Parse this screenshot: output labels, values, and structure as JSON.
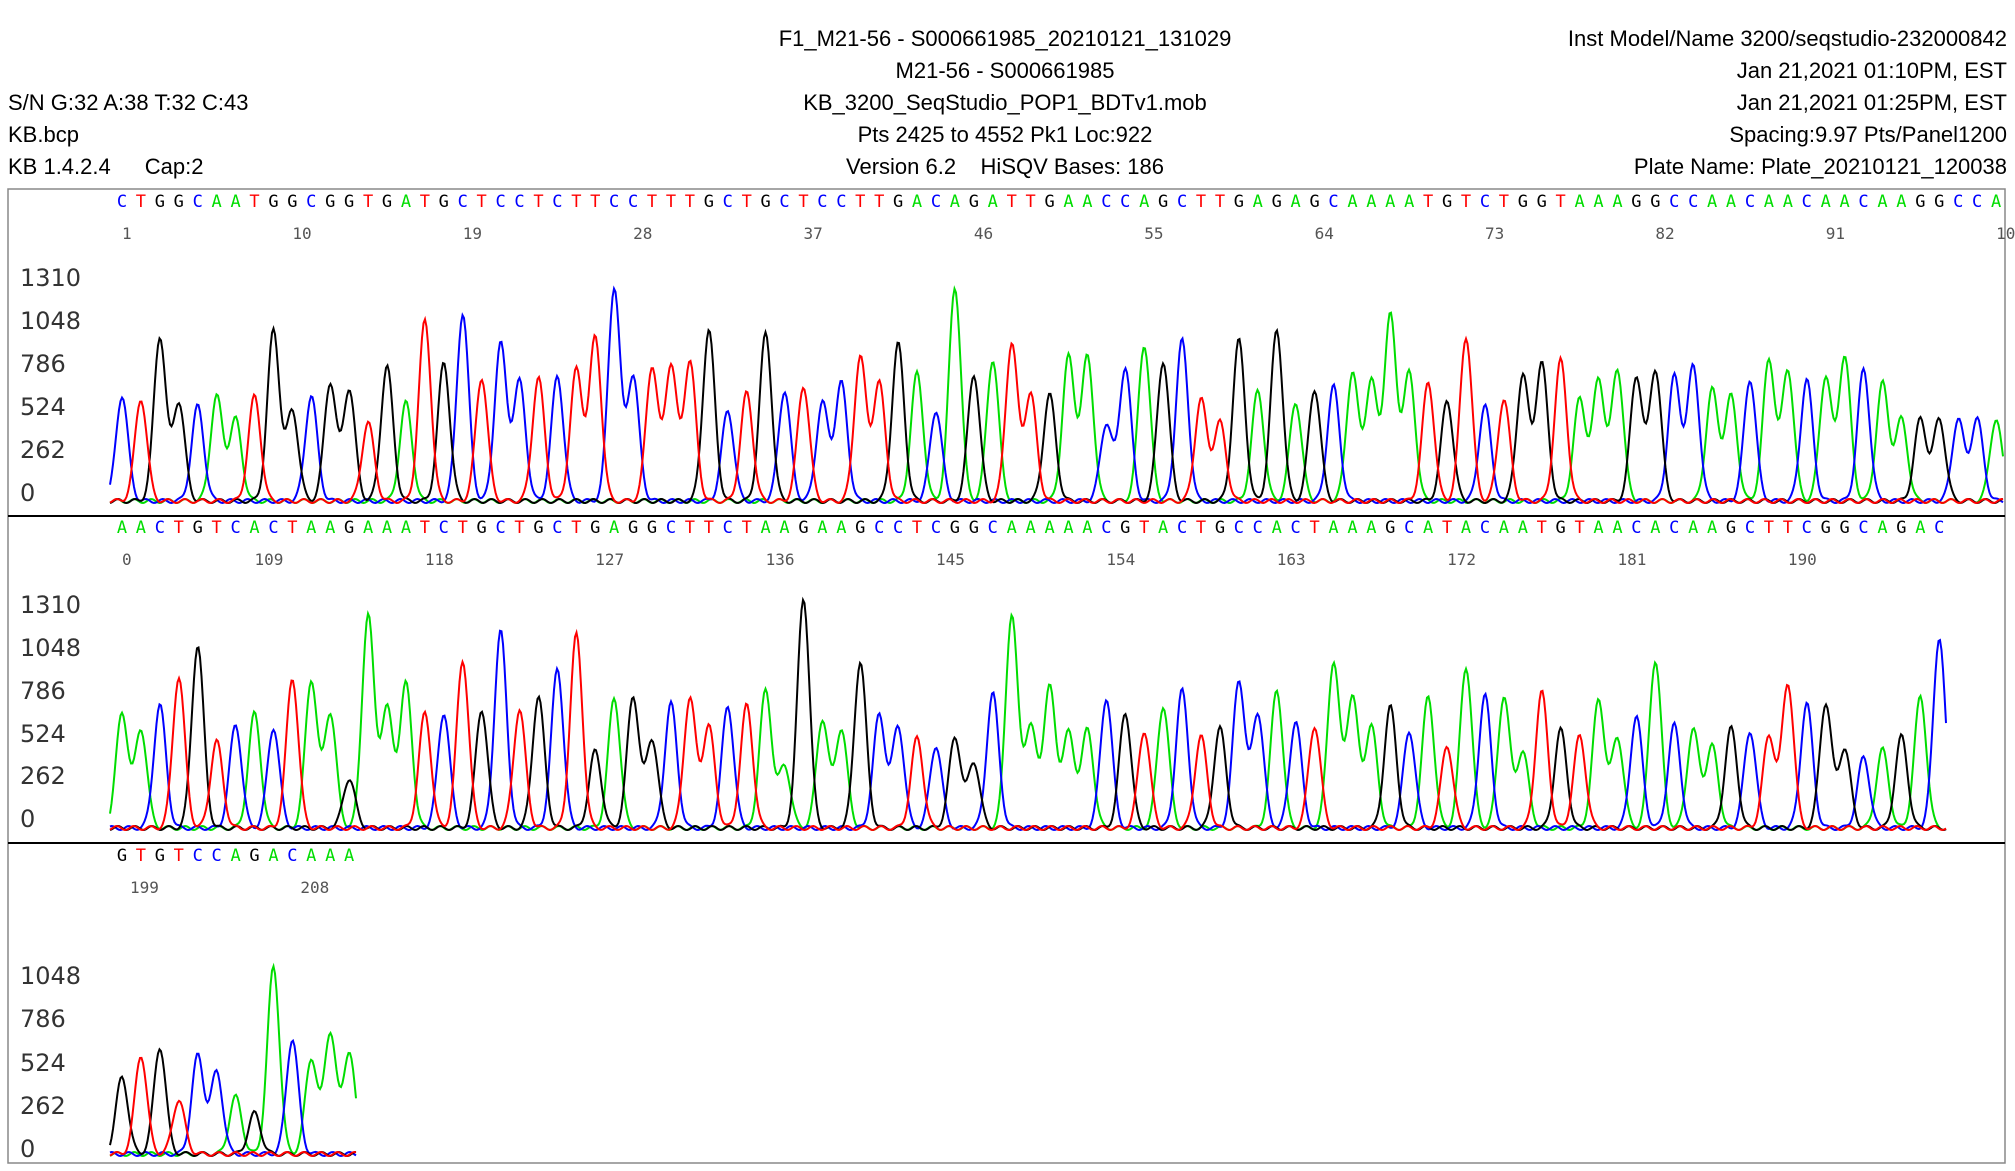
{
  "header": {
    "left": {
      "sn": "S/N G:32 A:38 T:32 C:43",
      "bcp": "KB.bcp",
      "kb_version": "KB 1.4.2.4",
      "cap": "Cap:2"
    },
    "center": {
      "sample_file": "F1_M21-56 - S000661985_20210121_131029",
      "sample_name": "M21-56 - S000661985",
      "mob": "KB_3200_SeqStudio_POP1_BDTv1.mob",
      "points": "Pts 2425 to 4552 Pk1 Loc:922",
      "version": "Version 6.2",
      "hisqv": "HiSQV Bases: 186"
    },
    "right": {
      "instrument": "Inst Model/Name 3200/seqstudio-232000842",
      "date1": "Jan 21,2021 01:10PM, EST",
      "date2": "Jan 21,2021 01:25PM, EST",
      "spacing": "Spacing:9.97  Pts/Panel1200",
      "plate": "Plate Name: Plate_20210121_120038"
    }
  },
  "colors": {
    "A": "#00dd00",
    "C": "#0000ff",
    "G": "#000000",
    "T": "#ff0000",
    "frame": "#000000",
    "tick": "#555555"
  },
  "chart_data": {
    "type": "line",
    "ylim": [
      0,
      1400
    ],
    "panels": [
      {
        "sequence": "CTGGCAATGGCGGTGATGCTCCTCTTCCTTTGCTGCTCCTTGACAGATTGAACCAGCTTGAGAGCAAAATGTCTGGTAAAGGCCAACAACAACAAGGCCA",
        "position_labels": [
          "1",
          "10",
          "19",
          "28",
          "37",
          "46",
          "55",
          "64",
          "73",
          "82",
          "91",
          "10"
        ],
        "y_ticks": [
          "1310",
          "1048",
          "786",
          "524",
          "262",
          "0"
        ],
        "peak_heights": [
          640,
          620,
          1000,
          600,
          580,
          640,
          500,
          640,
          1040,
          550,
          640,
          720,
          680,
          480,
          820,
          600,
          1100,
          840,
          1140,
          750,
          960,
          730,
          750,
          760,
          800,
          1000,
          1300,
          760,
          820,
          830,
          850,
          1040,
          550,
          660,
          1020,
          670,
          700,
          600,
          720,
          880,
          720,
          960,
          780,
          550,
          1300,
          770,
          860,
          960,
          650,
          650,
          880,
          880,
          470,
          810,
          950,
          850,
          980,
          620,
          480,
          980,
          670,
          1040,
          600,
          680,
          700,
          780,
          730,
          1130,
          780,
          720,
          610,
          1000,
          580,
          620,
          770,
          840,
          860,
          620,
          740,
          800,
          760,
          800,
          760,
          820,
          680,
          640,
          740,
          860,
          800,
          740,
          760,
          880,
          800,
          720
        ]
      },
      {
        "sequence": "AACTGTCACTAAGAAATCTGCTGCTGAGGCTTCTAAGAAGCCTCGGCAAAAACGTACTGCCACTAAAGCATACAATGTAACACAAGCTTCGGCAGAC",
        "position_labels": [
          "0",
          "109",
          "118",
          "127",
          "136",
          "145",
          "154",
          "163",
          "172",
          "181",
          "190"
        ],
        "y_ticks": [
          "1310",
          "1048",
          "786",
          "524",
          "262",
          "0"
        ],
        "peak_heights": [
          700,
          600,
          750,
          920,
          1110,
          530,
          630,
          700,
          610,
          910,
          900,
          700,
          300,
          1300,
          730,
          880,
          700,
          700,
          1020,
          720,
          1200,
          720,
          800,
          970,
          1180,
          470,
          790,
          800,
          540,
          760,
          790,
          620,
          740,
          750,
          840,
          380,
          1400,
          660,
          600,
          1010,
          690,
          620,
          550,
          500,
          550,
          400,
          820,
          1300,
          620,
          860,
          580,
          600,
          790,
          700,
          590,
          740,
          840,
          560,
          610,
          900,
          700,
          840,
          650,
          620,
          1010,
          800,
          620,
          740,
          590,
          800,
          500,
          980,
          810,
          800,
          460,
          830,
          600,
          560,
          780,
          550,
          680,
          1020,
          630,
          600,
          500,
          610,
          590,
          560,
          880,
          760,
          760,
          480,
          430,
          480,
          560,
          800,
          1160,
          620
        ]
      },
      {
        "sequence": "GTGTCCAGACAAA",
        "position_labels": [
          "199",
          "208"
        ],
        "y_ticks": [
          "1048",
          "786",
          "524",
          "262",
          "0"
        ],
        "peak_heights": [
          470,
          600,
          650,
          330,
          600,
          500,
          350,
          250,
          1140,
          700,
          580,
          740,
          620
        ]
      }
    ]
  }
}
